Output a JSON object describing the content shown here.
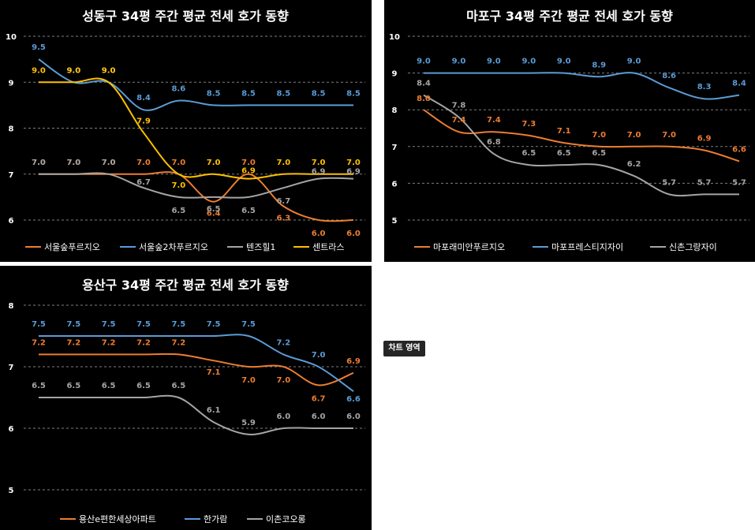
{
  "chart_data": [
    {
      "type": "line",
      "title": "성동구 34평 주간 평균 전세 호가 동향",
      "ylim": [
        6,
        10
      ],
      "yticks": [
        "6",
        "7",
        "8",
        "9",
        "10"
      ],
      "grid": true,
      "legend": "bottom",
      "series": [
        {
          "name": "서울숲푸르지오",
          "color": "#ED7D31",
          "values": [
            7.0,
            7.0,
            7.0,
            7.0,
            7.0,
            6.4,
            7.0,
            6.3,
            6.0,
            6.0
          ]
        },
        {
          "name": "서울숲2차푸르지오",
          "color": "#5B9BD5",
          "values": [
            9.5,
            9.0,
            9.0,
            8.4,
            8.6,
            8.5,
            8.5,
            8.5,
            8.5,
            8.5
          ]
        },
        {
          "name": "텐즈힐1",
          "color": "#A5A5A5",
          "values": [
            7.0,
            7.0,
            7.0,
            6.7,
            6.5,
            6.5,
            6.5,
            6.7,
            6.9,
            6.9
          ]
        },
        {
          "name": "센트라스",
          "color": "#FFC000",
          "values": [
            9.0,
            9.0,
            9.0,
            7.9,
            7.0,
            7.0,
            6.9,
            7.0,
            7.0,
            7.0
          ]
        }
      ]
    },
    {
      "type": "line",
      "title": "마포구 34평 주간 평균 전세 호가 동향",
      "ylim": [
        5,
        10
      ],
      "yticks": [
        "5",
        "6",
        "7",
        "8",
        "9",
        "10"
      ],
      "grid": true,
      "legend": "bottom",
      "series": [
        {
          "name": "마포래미안푸르지오",
          "color": "#ED7D31",
          "values": [
            8.0,
            7.4,
            7.4,
            7.3,
            7.1,
            7.0,
            7.0,
            7.0,
            6.9,
            6.6
          ]
        },
        {
          "name": "마포프레스티지자이",
          "color": "#5B9BD5",
          "values": [
            9.0,
            9.0,
            9.0,
            9.0,
            9.0,
            8.9,
            9.0,
            8.6,
            8.3,
            8.4
          ]
        },
        {
          "name": "신촌그랑자이",
          "color": "#A5A5A5",
          "values": [
            8.4,
            7.8,
            6.8,
            6.5,
            6.5,
            6.5,
            6.2,
            5.7,
            5.7,
            5.7
          ]
        }
      ]
    },
    {
      "type": "line",
      "title": "용산구 34평 주간 평균 전세 호가 동향",
      "ylim": [
        5,
        8
      ],
      "yticks": [
        "5",
        "6",
        "7",
        "8"
      ],
      "grid": true,
      "legend": "bottom",
      "series": [
        {
          "name": "용산e편한세상아파트",
          "color": "#ED7D31",
          "values": [
            7.2,
            7.2,
            7.2,
            7.2,
            7.2,
            7.1,
            7.0,
            7.0,
            6.7,
            6.9
          ]
        },
        {
          "name": "한가람",
          "color": "#5B9BD5",
          "values": [
            7.5,
            7.5,
            7.5,
            7.5,
            7.5,
            7.5,
            7.5,
            7.2,
            7.0,
            6.6
          ]
        },
        {
          "name": "이촌코오롱",
          "color": "#A5A5A5",
          "values": [
            6.5,
            6.5,
            6.5,
            6.5,
            6.5,
            6.1,
            5.9,
            6.0,
            6.0,
            6.0
          ]
        }
      ]
    }
  ],
  "tooltip": {
    "label": "차트 영역"
  }
}
